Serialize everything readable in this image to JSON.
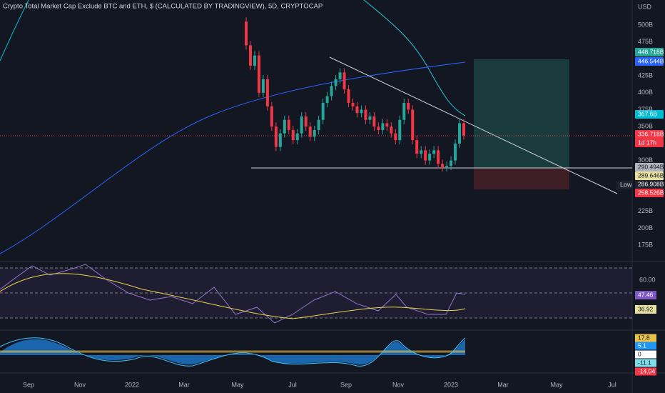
{
  "header": {
    "title": "Crypto Total Market Cap Exclude BTC and ETH, $ (CALCULATED BY TRADINGVIEW), 5D, CRYPTOCAP",
    "currency": "USD"
  },
  "price_axis": {
    "ticks": [
      {
        "value": 500,
        "label": "500B"
      },
      {
        "value": 475,
        "label": "475B"
      },
      {
        "value": 425,
        "label": "425B"
      },
      {
        "value": 400,
        "label": "400B"
      },
      {
        "value": 375,
        "label": "375B"
      },
      {
        "value": 350,
        "label": "350B"
      },
      {
        "value": 300,
        "label": "300B"
      },
      {
        "value": 225,
        "label": "225B"
      },
      {
        "value": 200,
        "label": "200B"
      },
      {
        "value": 175,
        "label": "175B"
      }
    ]
  },
  "price_tags": [
    {
      "label": "448.718B",
      "color": "#26a69a"
    },
    {
      "label": "446.544B",
      "color": "#2962ff"
    },
    {
      "label": "367.6B",
      "color": "#00bcd4"
    },
    {
      "label": "336.718B",
      "color": "#f23645"
    },
    {
      "label": "1d 17h",
      "color": "#f23645"
    },
    {
      "label": "290.494B",
      "color": "#b2b5be"
    },
    {
      "label": "289.646B",
      "color": "#e8e0a0"
    },
    {
      "label": "286.908B",
      "color": "#1e222d"
    },
    {
      "label": "258.526B",
      "color": "#f23645"
    }
  ],
  "low_label": "Low",
  "candles": {
    "open": 505,
    "closes": [
      470,
      440,
      455,
      400,
      420,
      380,
      350,
      320,
      340,
      360,
      345,
      330,
      340,
      365,
      350,
      335,
      345,
      360,
      385,
      395,
      410,
      420,
      430,
      405,
      385,
      380,
      370,
      375,
      360,
      365,
      350,
      345,
      355,
      350,
      340,
      330,
      360,
      385,
      375,
      330,
      310,
      315,
      300,
      310,
      315,
      295,
      290,
      292,
      300,
      325,
      355,
      337
    ]
  },
  "time_axis": [
    "Sep",
    "Nov",
    "2022",
    "Mar",
    "May",
    "Jul",
    "Sep",
    "Nov",
    "2023",
    "Mar",
    "May",
    "Jul"
  ],
  "rsi": {
    "tick": "60.00",
    "tags": [
      {
        "label": "47.46",
        "color": "#7e57c2"
      },
      {
        "label": "36.92",
        "color": "#e8e0a0"
      }
    ]
  },
  "osc": {
    "tags": [
      {
        "label": "17.8",
        "color": "#e8c14a"
      },
      {
        "label": "5.1",
        "color": "#2196f3"
      },
      {
        "label": "0",
        "color": "#ffffff"
      },
      {
        "label": "-11.1",
        "color": "#80deea"
      },
      {
        "label": "-14.04",
        "color": "#f23645"
      }
    ]
  }
}
